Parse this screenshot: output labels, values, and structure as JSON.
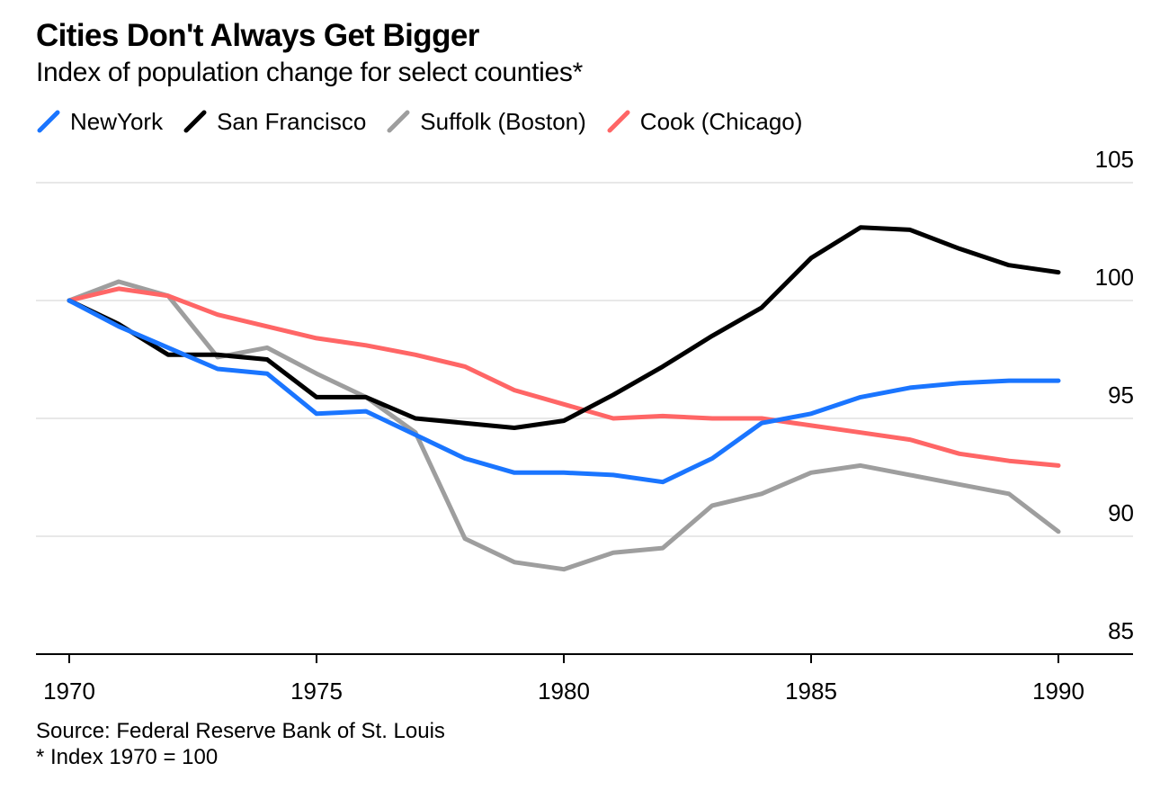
{
  "title": "Cities Don't Always Get Bigger",
  "subtitle": "Index of population change for select counties*",
  "footer": {
    "source": "Source: Federal Reserve Bank of St. Louis",
    "note": "* Index 1970 = 100"
  },
  "chart_data": {
    "type": "line",
    "x": [
      1970,
      1971,
      1972,
      1973,
      1974,
      1975,
      1976,
      1977,
      1978,
      1979,
      1980,
      1981,
      1982,
      1983,
      1984,
      1985,
      1986,
      1987,
      1988,
      1989,
      1990
    ],
    "series": [
      {
        "name": "NewYork",
        "color": "#1a75ff",
        "values": [
          100,
          98.9,
          98.0,
          97.1,
          96.9,
          95.2,
          95.3,
          94.3,
          93.3,
          92.7,
          92.7,
          92.6,
          92.3,
          93.3,
          94.8,
          95.2,
          95.9,
          96.3,
          96.5,
          96.6,
          96.6
        ]
      },
      {
        "name": "San Francisco",
        "color": "#000000",
        "values": [
          100,
          99.0,
          97.7,
          97.7,
          97.5,
          95.9,
          95.9,
          95.0,
          94.8,
          94.6,
          94.9,
          96.0,
          97.2,
          98.5,
          99.7,
          101.8,
          103.1,
          103.0,
          102.2,
          101.5,
          101.2
        ]
      },
      {
        "name": "Suffolk (Boston)",
        "color": "#9e9e9e",
        "values": [
          100,
          100.8,
          100.2,
          97.6,
          98.0,
          96.9,
          95.9,
          94.4,
          89.9,
          88.9,
          88.6,
          89.3,
          89.5,
          91.3,
          91.8,
          92.7,
          93.0,
          92.6,
          92.2,
          91.8,
          90.2
        ]
      },
      {
        "name": "Cook (Chicago)",
        "color": "#ff6666",
        "values": [
          100,
          100.5,
          100.2,
          99.4,
          98.9,
          98.4,
          98.1,
          97.7,
          97.2,
          96.2,
          95.6,
          95.0,
          95.1,
          95.0,
          95.0,
          94.7,
          94.4,
          94.1,
          93.5,
          93.2,
          93.0
        ]
      }
    ],
    "x_ticks": [
      "1970",
      "1975",
      "1980",
      "1985",
      "1990"
    ],
    "y_ticks": [
      "105",
      "100",
      "95",
      "90",
      "85"
    ],
    "ylim": [
      85,
      105
    ],
    "xlim": [
      1970,
      1990
    ],
    "grid": true,
    "legend_position": "top-left",
    "y_axis_side": "right"
  }
}
